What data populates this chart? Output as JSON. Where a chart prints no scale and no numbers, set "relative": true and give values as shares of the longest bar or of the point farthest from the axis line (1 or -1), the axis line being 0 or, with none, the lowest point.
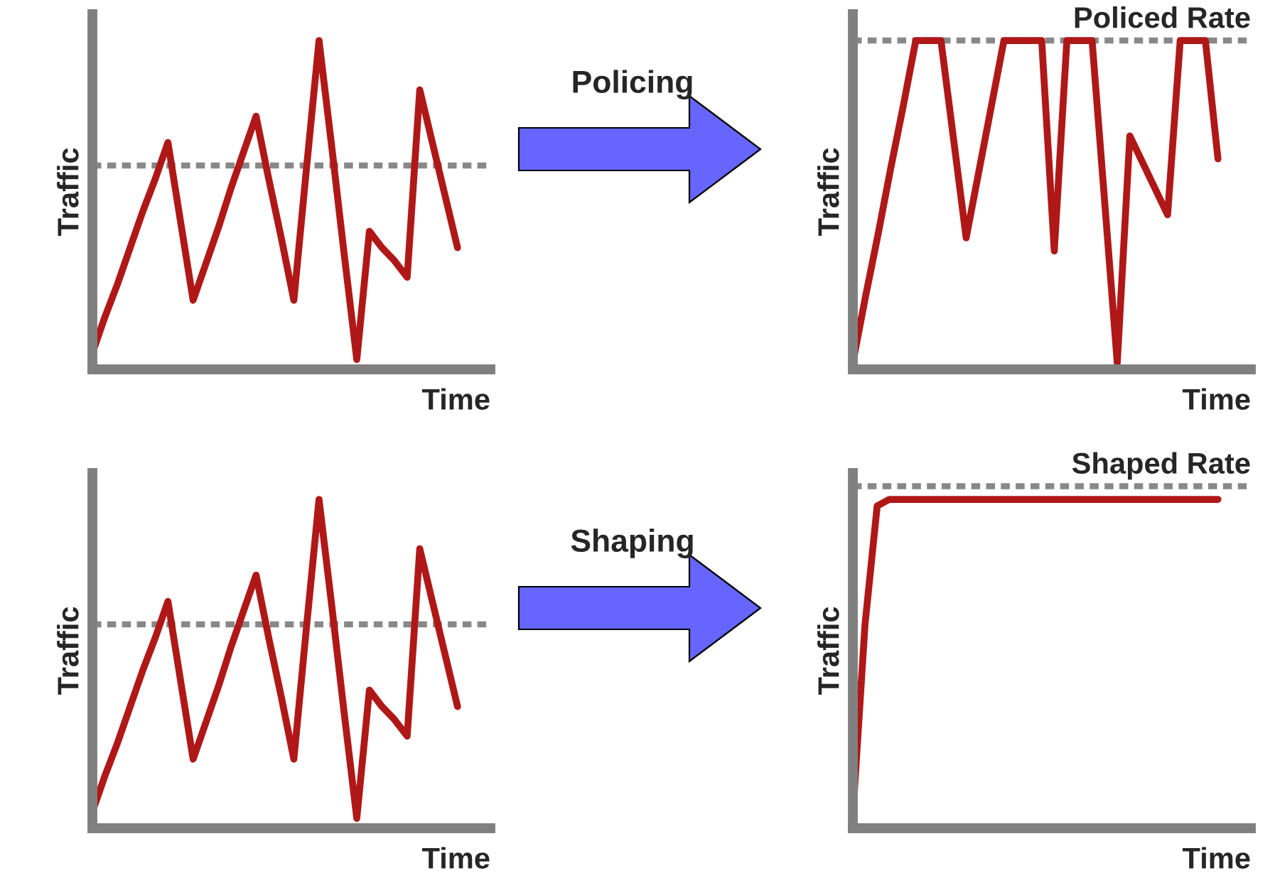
{
  "chart_data": [
    {
      "type": "line",
      "relative": true,
      "ylabel": "Traffic",
      "xlabel": "Time",
      "annotations": [
        "Policing"
      ],
      "categories": [
        null,
        null,
        null,
        null,
        null,
        null,
        null,
        null,
        null,
        null,
        null,
        null,
        null,
        null,
        null,
        null,
        null,
        null,
        null,
        null,
        null,
        null,
        null,
        null,
        null,
        null,
        null,
        null,
        null,
        null
      ],
      "series": [
        {
          "color": "#b01818",
          "values": [
            0.05,
            0.16,
            0.26,
            0.37,
            0.48,
            0.58,
            0.69,
            0.45,
            0.21,
            0.32,
            0.43,
            0.55,
            0.66,
            0.77,
            0.58,
            0.4,
            0.21,
            0.61,
            1,
            0.68,
            0.35,
            0.03,
            0.42,
            0.37,
            0.33,
            0.28,
            0.85,
            0.69,
            0.53,
            0.37
          ]
        }
      ],
      "ref_lines": [
        {
          "axis": "y",
          "value": 0.62,
          "color": "#888888",
          "line_style": "dotted"
        }
      ]
    },
    {
      "type": "line",
      "relative": true,
      "ylabel": "Traffic",
      "xlabel": "Time",
      "categories": [
        null,
        null,
        null,
        null,
        null,
        null,
        null,
        null,
        null,
        null,
        null,
        null,
        null,
        null,
        null,
        null,
        null,
        null,
        null,
        null,
        null,
        null,
        null,
        null,
        null,
        null,
        null,
        null,
        null,
        null
      ],
      "series": [
        {
          "color": "#b01818",
          "values": [
            0.02,
            0.22,
            0.41,
            0.61,
            0.8,
            1,
            1,
            1,
            0.7,
            0.4,
            0.6,
            0.8,
            1,
            1,
            1,
            1,
            0.36,
            1,
            1,
            1,
            0.51,
            0.02,
            0.71,
            0.63,
            0.55,
            0.47,
            1,
            1,
            1,
            0.64
          ]
        }
      ],
      "ref_lines": [
        {
          "axis": "y",
          "value": 1,
          "label": "Policed Rate",
          "color": "#888888",
          "line_style": "dotted"
        }
      ]
    },
    {
      "type": "line",
      "relative": true,
      "ylabel": "Traffic",
      "xlabel": "Time",
      "annotations": [
        "Shaping"
      ],
      "categories": [
        null,
        null,
        null,
        null,
        null,
        null,
        null,
        null,
        null,
        null,
        null,
        null,
        null,
        null,
        null,
        null,
        null,
        null,
        null,
        null,
        null,
        null,
        null,
        null,
        null,
        null,
        null,
        null,
        null,
        null
      ],
      "series": [
        {
          "color": "#b01818",
          "values": [
            0.05,
            0.16,
            0.26,
            0.37,
            0.48,
            0.58,
            0.69,
            0.45,
            0.21,
            0.32,
            0.43,
            0.55,
            0.66,
            0.77,
            0.58,
            0.4,
            0.21,
            0.61,
            1,
            0.68,
            0.35,
            0.03,
            0.42,
            0.37,
            0.33,
            0.28,
            0.85,
            0.69,
            0.53,
            0.37
          ]
        }
      ],
      "ref_lines": [
        {
          "axis": "y",
          "value": 0.62,
          "color": "#888888",
          "line_style": "dotted"
        }
      ]
    },
    {
      "type": "line",
      "relative": true,
      "ylabel": "Traffic",
      "xlabel": "Time",
      "categories": [
        null,
        null,
        null,
        null,
        null,
        null,
        null,
        null,
        null,
        null,
        null,
        null,
        null,
        null,
        null,
        null,
        null,
        null,
        null,
        null,
        null,
        null,
        null,
        null,
        null,
        null,
        null,
        null,
        null,
        null,
        null
      ],
      "series": [
        {
          "color": "#b01818",
          "values": [
            0.04,
            0.62,
            0.98,
            1,
            1,
            1,
            1,
            1,
            1,
            1,
            1,
            1,
            1,
            1,
            1,
            1,
            1,
            1,
            1,
            1,
            1,
            1,
            1,
            1,
            1,
            1,
            1,
            1,
            1,
            1,
            1
          ]
        }
      ],
      "ref_lines": [
        {
          "axis": "y",
          "value": 1.04,
          "label": "Shaped Rate",
          "color": "#888888",
          "line_style": "dotted"
        }
      ]
    }
  ]
}
